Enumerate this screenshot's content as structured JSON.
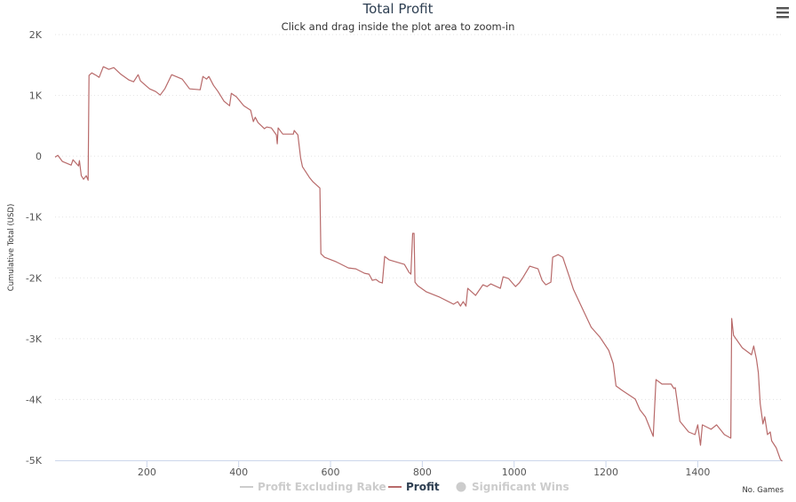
{
  "chart_data": {
    "type": "line",
    "title": "Total Profit",
    "subtitle": "Click and drag inside the plot area to zoom-in",
    "xlabel": "No. Games",
    "ylabel": "Cumulative Total (USD)",
    "xlim": [
      0,
      1585
    ],
    "ylim": [
      -5000,
      2000
    ],
    "x_ticks": [
      200,
      400,
      600,
      800,
      1000,
      1200,
      1400
    ],
    "x_tick_labels": [
      "200",
      "400",
      "600",
      "800",
      "1000",
      "1200",
      "1400"
    ],
    "y_ticks": [
      2000,
      1000,
      0,
      -1000,
      -2000,
      -3000,
      -4000,
      -5000
    ],
    "y_tick_labels": [
      "2K",
      "1K",
      "0",
      "-1K",
      "-2K",
      "-3K",
      "-4K",
      "-5K"
    ],
    "grid": true,
    "legend_position": "bottom",
    "legend": [
      {
        "name": "Profit Excluding Rake",
        "visible": false,
        "symbol": "line",
        "color": "#cccccc"
      },
      {
        "name": "Profit",
        "visible": true,
        "symbol": "line",
        "color": "#b86a6a"
      },
      {
        "name": "Significant Wins",
        "visible": false,
        "symbol": "circle",
        "color": "#cccccc"
      }
    ],
    "series": [
      {
        "name": "Profit",
        "color": "#b86a6a",
        "x": [
          0,
          6,
          16,
          35,
          39,
          51,
          53,
          57,
          62,
          68,
          72,
          74,
          80,
          90,
          96,
          105,
          117,
          128,
          142,
          161,
          171,
          181,
          186,
          206,
          219,
          229,
          239,
          254,
          277,
          293,
          316,
          322,
          330,
          335,
          345,
          355,
          368,
          380,
          384,
          395,
          411,
          426,
          432,
          436,
          442,
          456,
          461,
          471,
          482,
          484,
          486,
          496,
          519,
          521,
          529,
          535,
          539,
          554,
          562,
          577,
          579,
          587,
          612,
          639,
          655,
          674,
          684,
          691,
          699,
          707,
          713,
          718,
          728,
          761,
          771,
          775,
          779,
          782,
          784,
          790,
          809,
          838,
          868,
          877,
          883,
          889,
          895,
          899,
          916,
          932,
          941,
          949,
          970,
          976,
          988,
          1003,
          1011,
          1019,
          1034,
          1052,
          1061,
          1069,
          1080,
          1084,
          1096,
          1106,
          1119,
          1129,
          1148,
          1168,
          1187,
          1206,
          1216,
          1222,
          1235,
          1264,
          1274,
          1286,
          1303,
          1309,
          1322,
          1342,
          1348,
          1351,
          1355,
          1361,
          1380,
          1394,
          1400,
          1406,
          1410,
          1429,
          1441,
          1458,
          1472,
          1474,
          1478,
          1497,
          1517,
          1522,
          1528,
          1532,
          1536,
          1542,
          1546,
          1552,
          1558,
          1561,
          1571,
          1580,
          1584
        ],
        "y": [
          -15,
          15,
          -87,
          -146,
          -58,
          -160,
          -73,
          -320,
          -379,
          -320,
          -394,
          1327,
          1370,
          1327,
          1297,
          1472,
          1429,
          1458,
          1356,
          1254,
          1224,
          1341,
          1239,
          1108,
          1064,
          1006,
          1108,
          1341,
          1268,
          1108,
          1093,
          1312,
          1268,
          1312,
          1166,
          1064,
          904,
          831,
          1035,
          977,
          831,
          758,
          569,
          641,
          554,
          452,
          481,
          466,
          350,
          204,
          466,
          364,
          364,
          423,
          350,
          -29,
          -175,
          -350,
          -423,
          -525,
          -1603,
          -1662,
          -1735,
          -1837,
          -1851,
          -1924,
          -1939,
          -2041,
          -2026,
          -2070,
          -2085,
          -1647,
          -1706,
          -1778,
          -1910,
          -1939,
          -1268,
          -1268,
          -2070,
          -2128,
          -2230,
          -2318,
          -2434,
          -2391,
          -2464,
          -2391,
          -2464,
          -2172,
          -2289,
          -2114,
          -2143,
          -2099,
          -2172,
          -1983,
          -2012,
          -2143,
          -2085,
          -1997,
          -1808,
          -1851,
          -2041,
          -2114,
          -2070,
          -1662,
          -1618,
          -1662,
          -1953,
          -2187,
          -2493,
          -2813,
          -2974,
          -3192,
          -3411,
          -3776,
          -3848,
          -3994,
          -4169,
          -4286,
          -4606,
          -3673,
          -3746,
          -3746,
          -3819,
          -3805,
          -4023,
          -4359,
          -4534,
          -4577,
          -4417,
          -4752,
          -4417,
          -4490,
          -4417,
          -4577,
          -4636,
          -2668,
          -2945,
          -3149,
          -3265,
          -3120,
          -3338,
          -3557,
          -4067,
          -4402,
          -4286,
          -4577,
          -4534,
          -4679,
          -4796,
          -4985,
          -5015
        ]
      }
    ]
  },
  "menu_icon": "hamburger-menu-icon"
}
